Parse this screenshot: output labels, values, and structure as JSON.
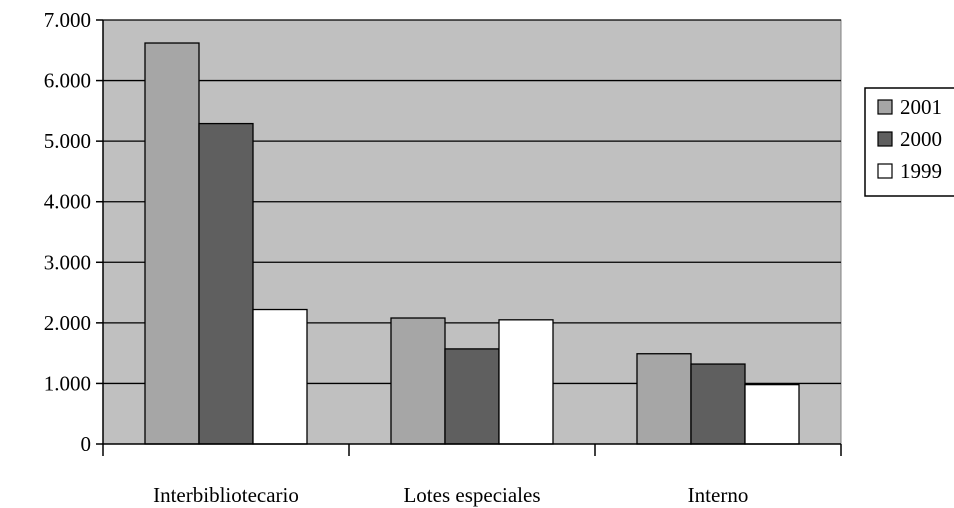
{
  "chart_data": {
    "type": "bar",
    "title": "",
    "xlabel": "",
    "ylabel": "",
    "categories": [
      "Interbibliotecario",
      "Lotes especiales",
      "Interno"
    ],
    "series": [
      {
        "name": "2001",
        "values": [
          6620,
          2080,
          1490
        ],
        "color": "#a6a6a6"
      },
      {
        "name": "2000",
        "values": [
          5290,
          1570,
          1320
        ],
        "color": "#5f5f5f"
      },
      {
        "name": "1999",
        "values": [
          2220,
          2050,
          980
        ],
        "color": "#ffffff"
      }
    ],
    "ylim": [
      0,
      7000
    ],
    "yticks": [
      0,
      1000,
      2000,
      3000,
      4000,
      5000,
      6000,
      7000
    ],
    "ytick_labels": [
      "0",
      "1.000",
      "2.000",
      "3.000",
      "4.000",
      "5.000",
      "6.000",
      "7.000"
    ],
    "grid": true,
    "plot_background": "#c0c0c0",
    "legend_position": "right"
  }
}
